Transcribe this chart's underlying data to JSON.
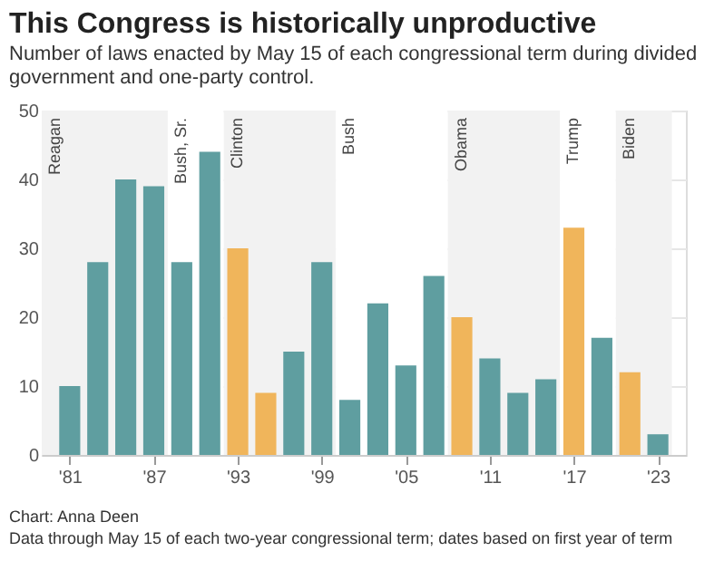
{
  "chart_data": {
    "type": "bar",
    "title": "This Congress is historically unproductive",
    "subtitle": [
      "Number of laws enacted by May 15 of each congressional term during divided",
      "government and one-party control."
    ],
    "x": [
      1981,
      1983,
      1985,
      1987,
      1989,
      1991,
      1993,
      1995,
      1997,
      1999,
      2001,
      2003,
      2005,
      2007,
      2009,
      2011,
      2013,
      2015,
      2017,
      2019,
      2021,
      2023
    ],
    "values": [
      10,
      28,
      40,
      39,
      28,
      44,
      30,
      9,
      15,
      28,
      8,
      22,
      13,
      26,
      20,
      14,
      9,
      11,
      33,
      17,
      12,
      3
    ],
    "colors": [
      "#5f9ea0",
      "#5f9ea0",
      "#5f9ea0",
      "#5f9ea0",
      "#5f9ea0",
      "#5f9ea0",
      "#f0b55b",
      "#f0b55b",
      "#5f9ea0",
      "#5f9ea0",
      "#5f9ea0",
      "#5f9ea0",
      "#5f9ea0",
      "#5f9ea0",
      "#f0b55b",
      "#5f9ea0",
      "#5f9ea0",
      "#5f9ea0",
      "#f0b55b",
      "#5f9ea0",
      "#f0b55b",
      "#5f9ea0"
    ],
    "xlim": [
      1979,
      2025
    ],
    "xticks": [
      {
        "value": 1981,
        "label": "'81"
      },
      {
        "value": 1987,
        "label": "'87"
      },
      {
        "value": 1993,
        "label": "'93"
      },
      {
        "value": 1999,
        "label": "'99"
      },
      {
        "value": 2005,
        "label": "'05"
      },
      {
        "value": 2011,
        "label": "'11"
      },
      {
        "value": 2017,
        "label": "'17"
      },
      {
        "value": 2023,
        "label": "'23"
      }
    ],
    "ylim": [
      0,
      50
    ],
    "yticks": [
      0,
      10,
      20,
      30,
      40,
      50
    ],
    "grid": "y",
    "bands": [
      {
        "axis": "x",
        "from": 1979,
        "to": 1988,
        "color": "#f2f2f2",
        "label": "Reagan"
      },
      {
        "axis": "x",
        "from": 1988,
        "to": 1992,
        "color": "#ffffff",
        "label": "Bush, Sr."
      },
      {
        "axis": "x",
        "from": 1992,
        "to": 2000,
        "color": "#f2f2f2",
        "label": "Clinton"
      },
      {
        "axis": "x",
        "from": 2000,
        "to": 2008,
        "color": "#ffffff",
        "label": "Bush"
      },
      {
        "axis": "x",
        "from": 2008,
        "to": 2016,
        "color": "#f2f2f2",
        "label": "Obama"
      },
      {
        "axis": "x",
        "from": 2016,
        "to": 2020,
        "color": "#ffffff",
        "label": "Trump"
      },
      {
        "axis": "x",
        "from": 2020,
        "to": 2024,
        "color": "#f2f2f2",
        "label": "Biden"
      }
    ],
    "annotations": [
      "Chart: Anna Deen",
      "Data through May 15 of each two-year congressional term; dates based on first year of term"
    ]
  }
}
